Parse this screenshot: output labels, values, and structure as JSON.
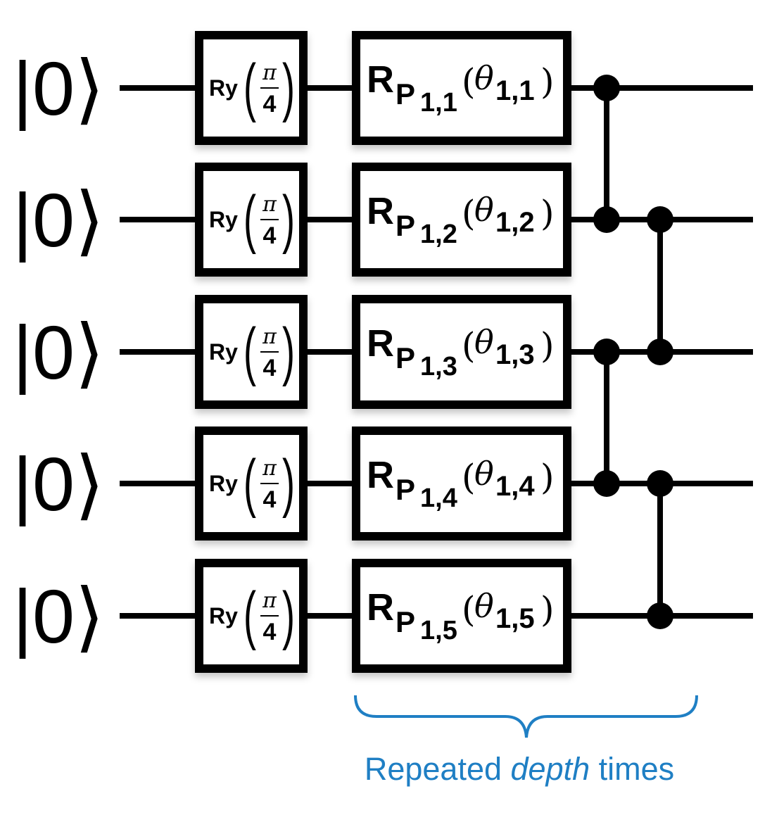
{
  "qubits": [
    {
      "ket": "|0⟩",
      "ry": {
        "label": "Ry",
        "num": "π",
        "den": "4"
      },
      "rgate": {
        "base": "R",
        "sub": "P",
        "sub_index": "1,1",
        "param": "θ",
        "param_index": "1,1"
      }
    },
    {
      "ket": "|0⟩",
      "ry": {
        "label": "Ry",
        "num": "π",
        "den": "4"
      },
      "rgate": {
        "base": "R",
        "sub": "P",
        "sub_index": "1,2",
        "param": "θ",
        "param_index": "1,2"
      }
    },
    {
      "ket": "|0⟩",
      "ry": {
        "label": "Ry",
        "num": "π",
        "den": "4"
      },
      "rgate": {
        "base": "R",
        "sub": "P",
        "sub_index": "1,3",
        "param": "θ",
        "param_index": "1,3"
      }
    },
    {
      "ket": "|0⟩",
      "ry": {
        "label": "Ry",
        "num": "π",
        "den": "4"
      },
      "rgate": {
        "base": "R",
        "sub": "P",
        "sub_index": "1,4",
        "param": "θ",
        "param_index": "1,4"
      }
    },
    {
      "ket": "|0⟩",
      "ry": {
        "label": "Ry",
        "num": "π",
        "den": "4"
      },
      "rgate": {
        "base": "R",
        "sub": "P",
        "sub_index": "1,5",
        "param": "θ",
        "param_index": "1,5"
      }
    }
  ],
  "entanglers": [
    {
      "column": 1,
      "qubits": [
        1,
        2
      ]
    },
    {
      "column": 1,
      "qubits": [
        3,
        4
      ]
    },
    {
      "column": 2,
      "qubits": [
        2,
        3
      ]
    },
    {
      "column": 2,
      "qubits": [
        4,
        5
      ]
    }
  ],
  "caption": {
    "prefix": "Repeated ",
    "emphasis": "depth",
    "suffix": " times"
  },
  "colors": {
    "wire": "#000000",
    "brace": "#1f7fc4",
    "caption": "#1f7fc4"
  }
}
